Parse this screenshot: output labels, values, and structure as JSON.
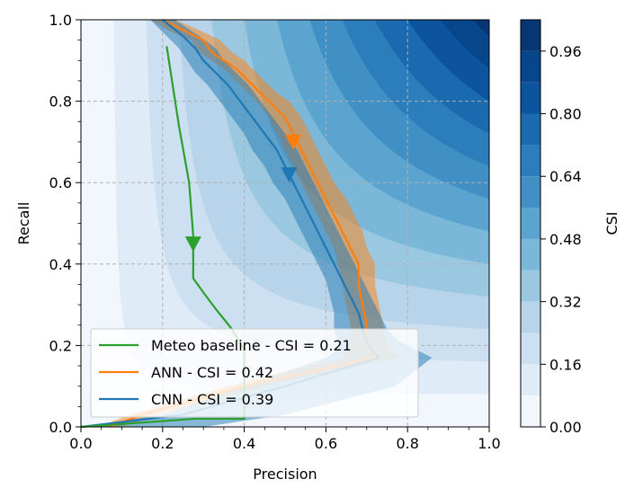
{
  "chart_data": {
    "type": "line",
    "xlabel": "Precision",
    "ylabel": "Recall",
    "xlim": [
      0,
      1
    ],
    "ylim": [
      0,
      1
    ],
    "xticks": [
      "0.0",
      "0.2",
      "0.4",
      "0.6",
      "0.8",
      "1.0"
    ],
    "yticks": [
      "0.0",
      "0.2",
      "0.4",
      "0.6",
      "0.8",
      "1.0"
    ],
    "grid": true,
    "legend_position": "lower-left",
    "background": {
      "type": "filled-contour",
      "quantity": "CSI",
      "levels": [
        0,
        0.08,
        0.16,
        0.24,
        0.32,
        0.4,
        0.48,
        0.56,
        0.64,
        0.72,
        0.8,
        0.88,
        0.96,
        1.04
      ],
      "colors": [
        "#f1f7fd",
        "#dfebf7",
        "#cde0f1",
        "#b7d4ea",
        "#9ac8e0",
        "#7bb7d9",
        "#5ca4d0",
        "#4090c5",
        "#2c7dbb",
        "#1b69af",
        "#0c559e",
        "#08468b",
        "#083573"
      ]
    },
    "colorbar": {
      "label": "CSI",
      "ticks": [
        "0.00",
        "0.16",
        "0.32",
        "0.48",
        "0.64",
        "0.80",
        "0.96"
      ],
      "tick_values": [
        0.0,
        0.16,
        0.32,
        0.48,
        0.64,
        0.8,
        0.96
      ]
    },
    "series": [
      {
        "name": "ANN - CSI = 0.42",
        "color": "#ff7f0e",
        "band_color": "#ff7f0e",
        "marker": [
          0.52,
          0.7
        ],
        "x": [
          0.2,
          0.26,
          0.3,
          0.32,
          0.35,
          0.38,
          0.41,
          0.44,
          0.46,
          0.5,
          0.52,
          0.54,
          0.56,
          0.58,
          0.6,
          0.62,
          0.64,
          0.66,
          0.68,
          0.68,
          0.69,
          0.7,
          0.7,
          0.72,
          0.4,
          0.15,
          0.07
        ],
        "y": [
          1.0,
          0.97,
          0.95,
          0.92,
          0.9,
          0.88,
          0.85,
          0.82,
          0.8,
          0.76,
          0.72,
          0.68,
          0.64,
          0.6,
          0.56,
          0.52,
          0.48,
          0.44,
          0.4,
          0.35,
          0.3,
          0.25,
          0.2,
          0.17,
          0.1,
          0.03,
          0.0
        ],
        "band_lower_x": [
          0.17,
          0.22,
          0.27,
          0.29,
          0.32,
          0.35,
          0.38,
          0.41,
          0.43,
          0.46,
          0.48,
          0.5,
          0.52,
          0.54,
          0.56,
          0.58,
          0.6,
          0.62,
          0.63,
          0.64,
          0.65,
          0.66,
          0.66,
          0.64,
          0.36,
          0.12,
          0.04
        ],
        "band_upper_x": [
          0.23,
          0.3,
          0.34,
          0.37,
          0.4,
          0.42,
          0.45,
          0.48,
          0.51,
          0.54,
          0.56,
          0.58,
          0.6,
          0.62,
          0.65,
          0.67,
          0.69,
          0.7,
          0.72,
          0.72,
          0.73,
          0.74,
          0.75,
          0.78,
          0.45,
          0.19,
          0.1
        ]
      },
      {
        "name": "CNN - CSI = 0.39",
        "color": "#1f77b4",
        "band_color": "#1f77b4",
        "marker": [
          0.51,
          0.62
        ],
        "x": [
          0.2,
          0.25,
          0.28,
          0.3,
          0.33,
          0.36,
          0.39,
          0.42,
          0.45,
          0.48,
          0.5,
          0.52,
          0.54,
          0.56,
          0.58,
          0.6,
          0.62,
          0.64,
          0.66,
          0.68,
          0.69,
          0.7,
          0.71,
          0.73,
          0.5,
          0.25,
          0.0
        ],
        "y": [
          1.0,
          0.96,
          0.93,
          0.9,
          0.87,
          0.84,
          0.8,
          0.76,
          0.72,
          0.68,
          0.64,
          0.6,
          0.56,
          0.52,
          0.48,
          0.44,
          0.4,
          0.36,
          0.32,
          0.28,
          0.24,
          0.21,
          0.19,
          0.17,
          0.1,
          0.03,
          0.0
        ],
        "band_lower_x": [
          0.17,
          0.21,
          0.24,
          0.26,
          0.28,
          0.31,
          0.34,
          0.37,
          0.4,
          0.42,
          0.45,
          0.47,
          0.5,
          0.52,
          0.54,
          0.56,
          0.58,
          0.6,
          0.61,
          0.62,
          0.62,
          0.63,
          0.63,
          0.6,
          0.4,
          0.2,
          0.0
        ],
        "band_upper_x": [
          0.23,
          0.29,
          0.33,
          0.35,
          0.38,
          0.41,
          0.44,
          0.47,
          0.5,
          0.53,
          0.55,
          0.57,
          0.59,
          0.61,
          0.63,
          0.65,
          0.67,
          0.69,
          0.71,
          0.73,
          0.75,
          0.78,
          0.82,
          0.86,
          0.77,
          0.5,
          0.3
        ]
      },
      {
        "name": "Meteo baseline - CSI = 0.21",
        "color": "#2ca02c",
        "marker": [
          0.275,
          0.45
        ],
        "x": [
          0.21,
          0.24,
          0.265,
          0.275,
          0.275,
          0.275,
          0.3,
          0.33,
          0.37,
          0.4,
          0.4,
          0.4,
          0.28,
          0.0
        ],
        "y": [
          0.935,
          0.74,
          0.6,
          0.47,
          0.42,
          0.365,
          0.33,
          0.29,
          0.24,
          0.19,
          0.1,
          0.02,
          0.02,
          0.0
        ]
      }
    ],
    "legend_order": [
      "Meteo baseline - CSI = 0.21",
      "ANN - CSI = 0.42",
      "CNN - CSI = 0.39"
    ]
  }
}
